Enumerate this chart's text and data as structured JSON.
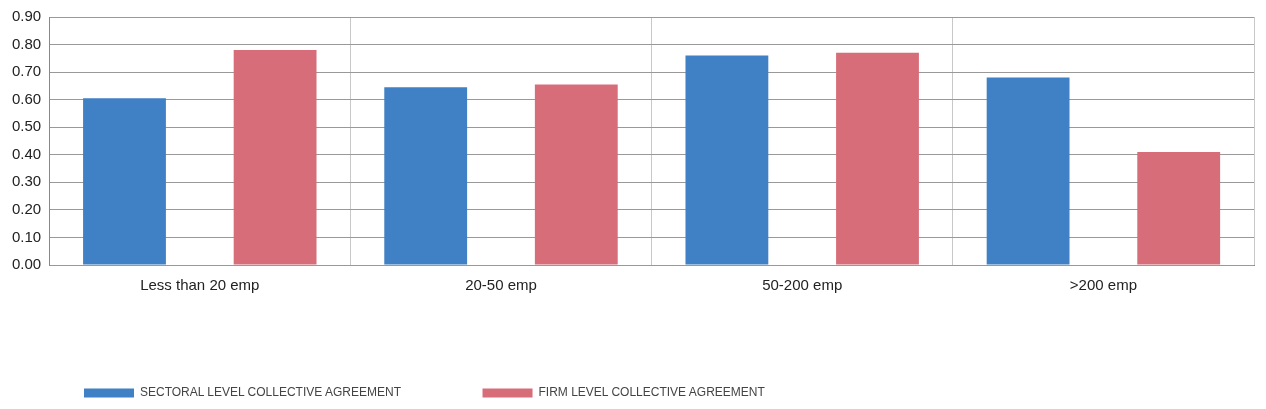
{
  "chart_data": {
    "type": "bar",
    "categories": [
      "Less than 20 emp",
      "20-50 emp",
      "50-200 emp",
      ">200 emp"
    ],
    "series": [
      {
        "name": "SECTORAL LEVEL COLLECTIVE AGREEMENT",
        "color": "#4080c4",
        "values": [
          0.605,
          0.645,
          0.76,
          0.68
        ]
      },
      {
        "name": "FIRM LEVEL COLLECTIVE AGREEMENT",
        "color": "#d66d78",
        "values": [
          0.78,
          0.655,
          0.77,
          0.41
        ]
      }
    ],
    "ylim": [
      0,
      0.9
    ],
    "yticks": [
      {
        "value": 0,
        "label": "0.00"
      },
      {
        "value": 0.1,
        "label": "0.10"
      },
      {
        "value": 0.2,
        "label": "0.20"
      },
      {
        "value": 0.3,
        "label": "0.30"
      },
      {
        "value": 0.4,
        "label": "0.40"
      },
      {
        "value": 0.5,
        "label": "0.50"
      },
      {
        "value": 0.6,
        "label": "0.60"
      },
      {
        "value": 0.7,
        "label": "0.70"
      },
      {
        "value": 0.8,
        "label": "0.80"
      },
      {
        "value": 0.9,
        "label": "0.90"
      }
    ],
    "grid": true,
    "legend": "bottom left"
  }
}
